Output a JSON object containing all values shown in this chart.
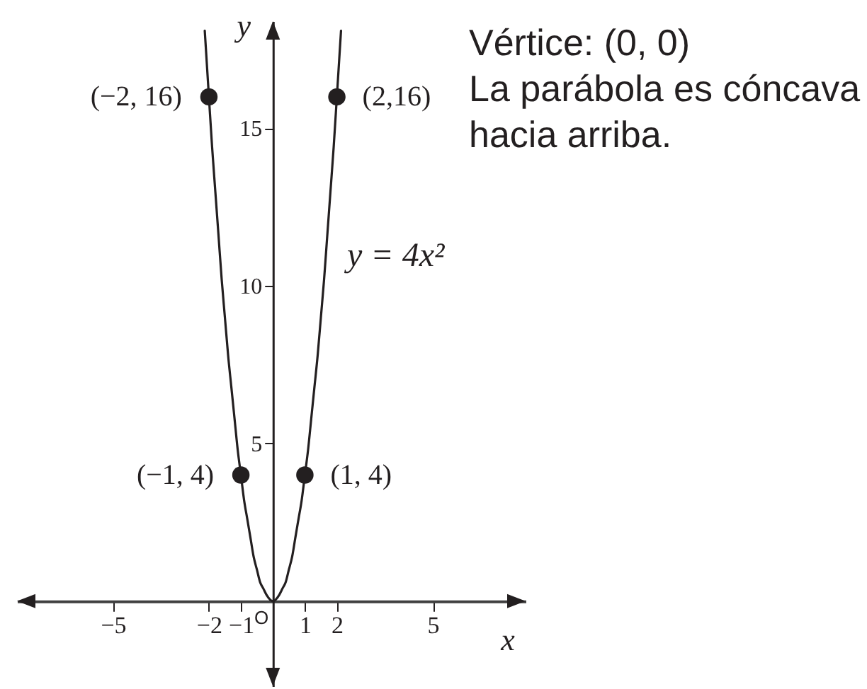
{
  "chart_data": {
    "type": "line",
    "xlabel": "x",
    "ylabel": "y",
    "annotations": [
      "Vértice: (0, 0)",
      "La parábola es cóncava\nhacia arriba.",
      {
        "text": "(−2, 16)",
        "x": -2,
        "y": 16
      },
      {
        "text": "(2,16)",
        "x": 2,
        "y": 16
      },
      {
        "text": "(−1, 4)",
        "x": -1,
        "y": 4
      },
      {
        "text": "(1, 4)",
        "x": 1,
        "y": 4
      },
      {
        "text": "O",
        "x": 0,
        "y": 0
      }
    ],
    "xlim": [
      -8,
      7.9
    ],
    "ylim": [
      -2.7,
      18.4
    ],
    "xticks": [
      -5,
      -2,
      -1,
      1,
      2,
      5
    ],
    "yticks": [
      5,
      10,
      15
    ],
    "series": [
      {
        "name": "y = 4x²",
        "color": "#231f20",
        "x": [
          -2.13,
          -2,
          -1.9,
          -1.8,
          -1.7,
          -1.6,
          -1.5,
          -1.4,
          -1.3,
          -1.2,
          -1.1,
          -1,
          -0.9,
          -0.8,
          -0.7,
          -0.6,
          -0.5,
          -0.4,
          -0.3,
          -0.2,
          0,
          0.2,
          0.3,
          0.4,
          0.5,
          0.6,
          0.7,
          0.8,
          0.9,
          1,
          1.1,
          1.2,
          1.3,
          1.4,
          1.5,
          1.6,
          1.7,
          1.8,
          1.9,
          2,
          2.13
        ],
        "values": [
          18.1,
          16,
          14.4,
          13,
          11.6,
          10.2,
          9,
          7.8,
          6.8,
          5.8,
          4.8,
          4,
          3.2,
          2.6,
          2,
          1.4,
          1,
          0.6,
          0.4,
          0.2,
          0,
          0.2,
          0.4,
          0.6,
          1,
          1.4,
          2,
          2.6,
          3.2,
          4,
          4.8,
          5.8,
          6.8,
          7.8,
          9,
          10.2,
          11.6,
          13,
          14.4,
          16,
          18.1
        ]
      },
      {
        "type": "scatter",
        "color": "#231f20",
        "marker": "circle",
        "x": [
          -2,
          -1,
          1,
          2
        ],
        "values": [
          16,
          4,
          4,
          16
        ]
      }
    ]
  }
}
